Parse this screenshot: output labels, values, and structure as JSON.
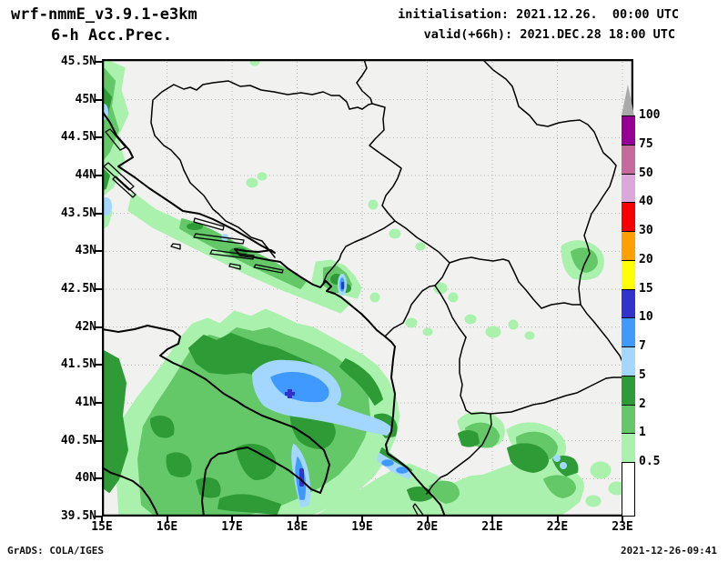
{
  "header": {
    "model": "wrf-nmmE_v3.9.1-e3km",
    "product": "6-h Acc.Prec.",
    "init_line": "initialisation: 2021.12.26.  00:00 UTC",
    "valid_line": "valid(+66h): 2021.DEC.28 18:00 UTC"
  },
  "axes": {
    "lat_labels": [
      "45.5N",
      "45N",
      "44.5N",
      "44N",
      "43.5N",
      "43N",
      "42.5N",
      "42N",
      "41.5N",
      "41N",
      "40.5N",
      "40N",
      "39.5N"
    ],
    "lon_labels": [
      "15E",
      "16E",
      "17E",
      "18E",
      "19E",
      "20E",
      "21E",
      "22E",
      "23E"
    ]
  },
  "colorbar": {
    "tick_labels": [
      "100",
      "75",
      "50",
      "40",
      "30",
      "20",
      "15",
      "10",
      "7",
      "5",
      "2",
      "1",
      "0.5"
    ],
    "values_mm": [
      100,
      75,
      50,
      40,
      30,
      20,
      15,
      10,
      7,
      5,
      2,
      1,
      0.5
    ],
    "segment_colors": [
      "#950095",
      "#c66a9e",
      "#dba8db",
      "#f80000",
      "#ff9f00",
      "#ffff00",
      "#3232cd",
      "#4099ff",
      "#a4d7ff",
      "#2e9b36",
      "#64c868",
      "#aaf1ad"
    ],
    "overflow_color": "#aaaaaa",
    "underflow_color": "#ffffff"
  },
  "map_colors": {
    "background": "#f1f1f0",
    "gridline": "#b3b3b3",
    "coastline": "#000000"
  },
  "footer": {
    "credit": "GrADS: COLA/IGES",
    "timestamp": "2021-12-26-09:41"
  }
}
